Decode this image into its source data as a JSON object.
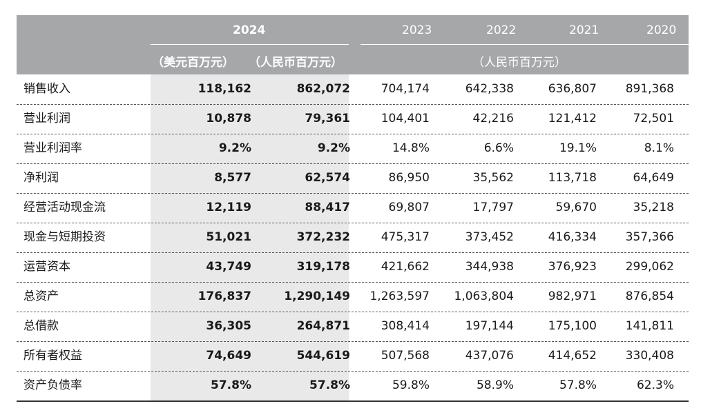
{
  "header": {
    "year_2024": "2024",
    "years_other": [
      "2023",
      "2022",
      "2021",
      "2020"
    ],
    "unit_usd": "（美元百万元）",
    "unit_rmb": "（人民币百万元）",
    "unit_rmb_span": "（人民币百万元）"
  },
  "rows": [
    {
      "label": "销售收入",
      "usd": "118,162",
      "rmb": "862,072",
      "y2023": "704,174",
      "y2022": "642,338",
      "y2021": "636,807",
      "y2020": "891,368"
    },
    {
      "label": "营业利润",
      "usd": "10,878",
      "rmb": "79,361",
      "y2023": "104,401",
      "y2022": "42,216",
      "y2021": "121,412",
      "y2020": "72,501"
    },
    {
      "label": "营业利润率",
      "usd": "9.2%",
      "rmb": "9.2%",
      "y2023": "14.8%",
      "y2022": "6.6%",
      "y2021": "19.1%",
      "y2020": "8.1%"
    },
    {
      "label": "净利润",
      "usd": "8,577",
      "rmb": "62,574",
      "y2023": "86,950",
      "y2022": "35,562",
      "y2021": "113,718",
      "y2020": "64,649"
    },
    {
      "label": "经营活动现金流",
      "usd": "12,119",
      "rmb": "88,417",
      "y2023": "69,807",
      "y2022": "17,797",
      "y2021": "59,670",
      "y2020": "35,218"
    },
    {
      "label": "现金与短期投资",
      "usd": "51,021",
      "rmb": "372,232",
      "y2023": "475,317",
      "y2022": "373,452",
      "y2021": "416,334",
      "y2020": "357,366"
    },
    {
      "label": "运营资本",
      "usd": "43,749",
      "rmb": "319,178",
      "y2023": "421,662",
      "y2022": "344,938",
      "y2021": "376,923",
      "y2020": "299,062"
    },
    {
      "label": "总资产",
      "usd": "176,837",
      "rmb": "1,290,149",
      "y2023": "1,263,597",
      "y2022": "1,063,804",
      "y2021": "982,971",
      "y2020": "876,854"
    },
    {
      "label": "总借款",
      "usd": "36,305",
      "rmb": "264,871",
      "y2023": "308,414",
      "y2022": "197,144",
      "y2021": "175,100",
      "y2020": "141,811"
    },
    {
      "label": "所有者权益",
      "usd": "74,649",
      "rmb": "544,619",
      "y2023": "507,568",
      "y2022": "437,076",
      "y2021": "414,652",
      "y2020": "330,408"
    },
    {
      "label": "资产负债率",
      "usd": "57.8%",
      "rmb": "57.8%",
      "y2023": "59.8%",
      "y2022": "58.9%",
      "y2021": "57.8%",
      "y2020": "62.3%"
    }
  ]
}
